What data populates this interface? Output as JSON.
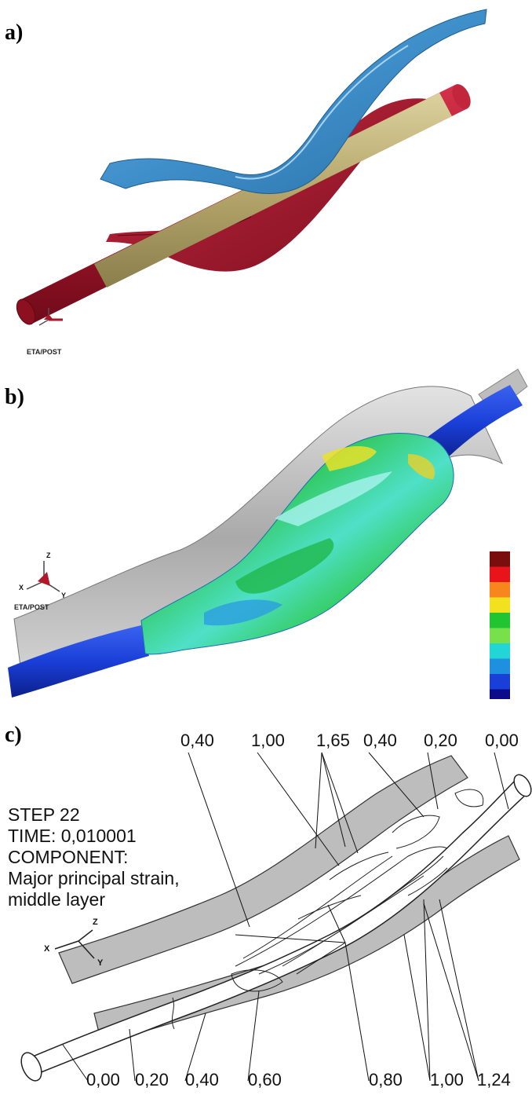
{
  "figure": {
    "panels": [
      {
        "label": "a)",
        "logo": "ETA/POST",
        "axes": [
          "X",
          "Y",
          "Z"
        ]
      },
      {
        "label": "b)",
        "logo": "ETA/POST",
        "axes": [
          "X",
          "Y",
          "Z"
        ],
        "legend_colors": [
          "#7a0e0e",
          "#e8141a",
          "#f7861d",
          "#f2e21d",
          "#21c532",
          "#78e04a",
          "#23d6d6",
          "#1f8fe0",
          "#1a3fd8",
          "#0c0c8a"
        ]
      },
      {
        "label": "c)",
        "info": {
          "step": "STEP 22",
          "time": "TIME: 0,010001",
          "component": "COMPONENT:",
          "desc1": "Major principal strain,",
          "desc2": "middle layer"
        },
        "axes": [
          "X",
          "Y",
          "Z"
        ],
        "top_values": [
          "0,40",
          "1,00",
          "1,65",
          "0,40",
          "0,20",
          "0,00"
        ],
        "bottom_values": [
          "0,00",
          "0,20",
          "0,40",
          "0,60",
          "0,80",
          "1,00",
          "1,24"
        ]
      }
    ],
    "colors": {
      "tube_red": "#a8162a",
      "tube_tan": "#b5a66b",
      "blank_blue": "#3f8fca",
      "strain_blue": "#1a3fd8",
      "sheet_gray": "#a9a9a9"
    }
  }
}
